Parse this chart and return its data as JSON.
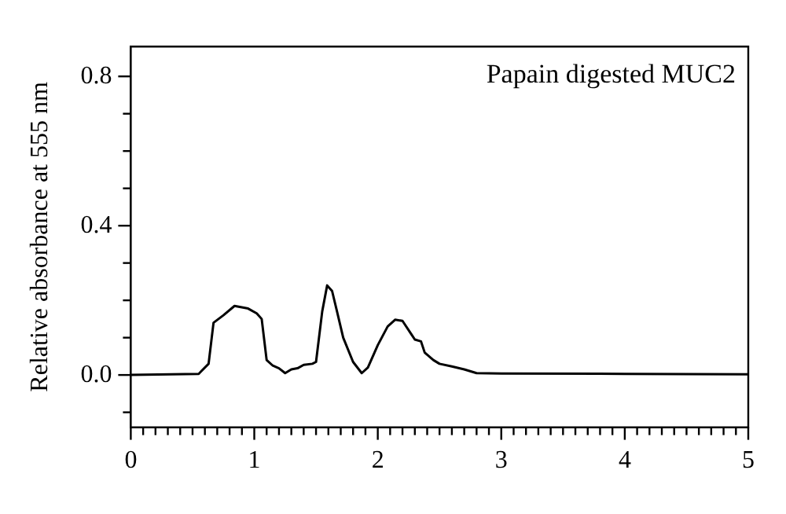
{
  "chart_data": {
    "type": "line",
    "ylabel": "Relative absorbance at 555 nm",
    "annotations": [
      "Papain digested MUC2"
    ],
    "x": [
      0,
      0.55,
      0.63,
      0.67,
      0.75,
      0.84,
      0.95,
      1.02,
      1.06,
      1.1,
      1.15,
      1.2,
      1.25,
      1.3,
      1.35,
      1.4,
      1.47,
      1.5,
      1.55,
      1.59,
      1.63,
      1.67,
      1.72,
      1.8,
      1.87,
      1.92,
      2.0,
      2.08,
      2.14,
      2.2,
      2.27,
      2.3,
      2.35,
      2.38,
      2.45,
      2.5,
      2.6,
      2.7,
      2.8,
      3,
      4,
      5
    ],
    "series": [
      {
        "color": "#000000",
        "values": [
          0,
          0.003,
          0.03,
          0.14,
          0.16,
          0.185,
          0.178,
          0.165,
          0.15,
          0.04,
          0.025,
          0.018,
          0.005,
          0.015,
          0.018,
          0.027,
          0.03,
          0.035,
          0.17,
          0.24,
          0.225,
          0.17,
          0.1,
          0.035,
          0.005,
          0.02,
          0.08,
          0.13,
          0.148,
          0.145,
          0.11,
          0.095,
          0.09,
          0.06,
          0.04,
          0.03,
          0.023,
          0.015,
          0.005,
          0.004,
          0.003,
          0.002
        ]
      }
    ],
    "xlim": [
      0,
      5
    ],
    "ylim": [
      -0.14,
      0.88
    ],
    "xticks": [
      0,
      {
        "value": 0.1,
        "label": null
      },
      {
        "value": 0.2,
        "label": null
      },
      {
        "value": 0.3,
        "label": null
      },
      {
        "value": 0.4,
        "label": null
      },
      {
        "value": 0.5,
        "label": null
      },
      {
        "value": 0.6,
        "label": null
      },
      {
        "value": 0.7,
        "label": null
      },
      {
        "value": 0.8,
        "label": null
      },
      {
        "value": 0.9,
        "label": null
      },
      1,
      {
        "value": 1.1,
        "label": null
      },
      {
        "value": 1.2,
        "label": null
      },
      {
        "value": 1.3,
        "label": null
      },
      {
        "value": 1.4,
        "label": null
      },
      {
        "value": 1.5,
        "label": null
      },
      {
        "value": 1.6,
        "label": null
      },
      {
        "value": 1.7,
        "label": null
      },
      {
        "value": 1.8,
        "label": null
      },
      {
        "value": 1.9,
        "label": null
      },
      2,
      {
        "value": 2.1,
        "label": null
      },
      {
        "value": 2.2,
        "label": null
      },
      {
        "value": 2.3,
        "label": null
      },
      {
        "value": 2.4,
        "label": null
      },
      {
        "value": 2.5,
        "label": null
      },
      {
        "value": 2.6,
        "label": null
      },
      {
        "value": 2.7,
        "label": null
      },
      {
        "value": 2.8,
        "label": null
      },
      {
        "value": 2.9,
        "label": null
      },
      3,
      {
        "value": 3.1,
        "label": null
      },
      {
        "value": 3.2,
        "label": null
      },
      {
        "value": 3.3,
        "label": null
      },
      {
        "value": 3.4,
        "label": null
      },
      {
        "value": 3.5,
        "label": null
      },
      {
        "value": 3.6,
        "label": null
      },
      {
        "value": 3.7,
        "label": null
      },
      {
        "value": 3.8,
        "label": null
      },
      {
        "value": 3.9,
        "label": null
      },
      4,
      {
        "value": 4.1,
        "label": null
      },
      {
        "value": 4.2,
        "label": null
      },
      {
        "value": 4.3,
        "label": null
      },
      {
        "value": 4.4,
        "label": null
      },
      {
        "value": 4.5,
        "label": null
      },
      {
        "value": 4.6,
        "label": null
      },
      {
        "value": 4.7,
        "label": null
      },
      {
        "value": 4.8,
        "label": null
      },
      {
        "value": 4.9,
        "label": null
      },
      5
    ],
    "yticks": [
      {
        "value": -0.1,
        "label": null
      },
      {
        "value": 0,
        "label": "0.0"
      },
      {
        "value": 0.1,
        "label": null
      },
      {
        "value": 0.2,
        "label": null
      },
      {
        "value": 0.3,
        "label": null
      },
      0.4,
      {
        "value": 0.5,
        "label": null
      },
      {
        "value": 0.6,
        "label": null
      },
      {
        "value": 0.7,
        "label": null
      },
      0.8
    ],
    "grid": false,
    "legend": false,
    "marker": "none",
    "line_style": "solid"
  }
}
